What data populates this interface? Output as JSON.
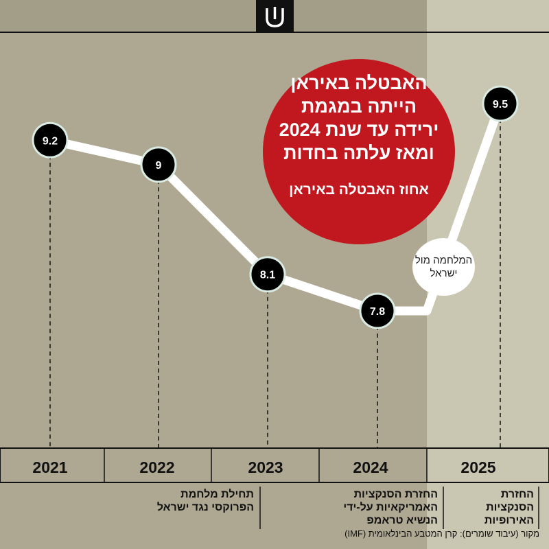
{
  "bubble": {
    "title": "האבטלה באיראן הייתה במגמת ירידה עד שנת 2024 ומאז עלתה בחדות",
    "subtitle": "אחוז האבטלה באיראן"
  },
  "event_bubble": {
    "text": "המלחמה מול ישראל"
  },
  "notes": [
    "תחילת מלחמת הפרוקסי נגד ישראל",
    "החזרת הסנקציות האמריקאיות על-ידי הנשיא טראמפ",
    "החזרת הסנקציות האירופיות"
  ],
  "source": "מקור (עיבוד שומרים): קרן המטבע הבינלאומית (IMF)",
  "colors": {
    "background": "#aea893",
    "highlight": "#c9c6b1",
    "bubble": "#c11820",
    "line": "#ffffff",
    "point": "#000000"
  },
  "logo": {
    "icon": "shomrim-logo-icon"
  },
  "chart_data": {
    "type": "line",
    "x": [
      "2021",
      "2022",
      "2023",
      "2024",
      "2025"
    ],
    "series": [
      {
        "values": [
          9.2,
          9,
          8.1,
          7.8,
          9.5
        ]
      }
    ],
    "point_labels": [
      "9.2",
      "9",
      "8.1",
      "7.8",
      "9.5"
    ],
    "highlighted_period": "2025"
  }
}
